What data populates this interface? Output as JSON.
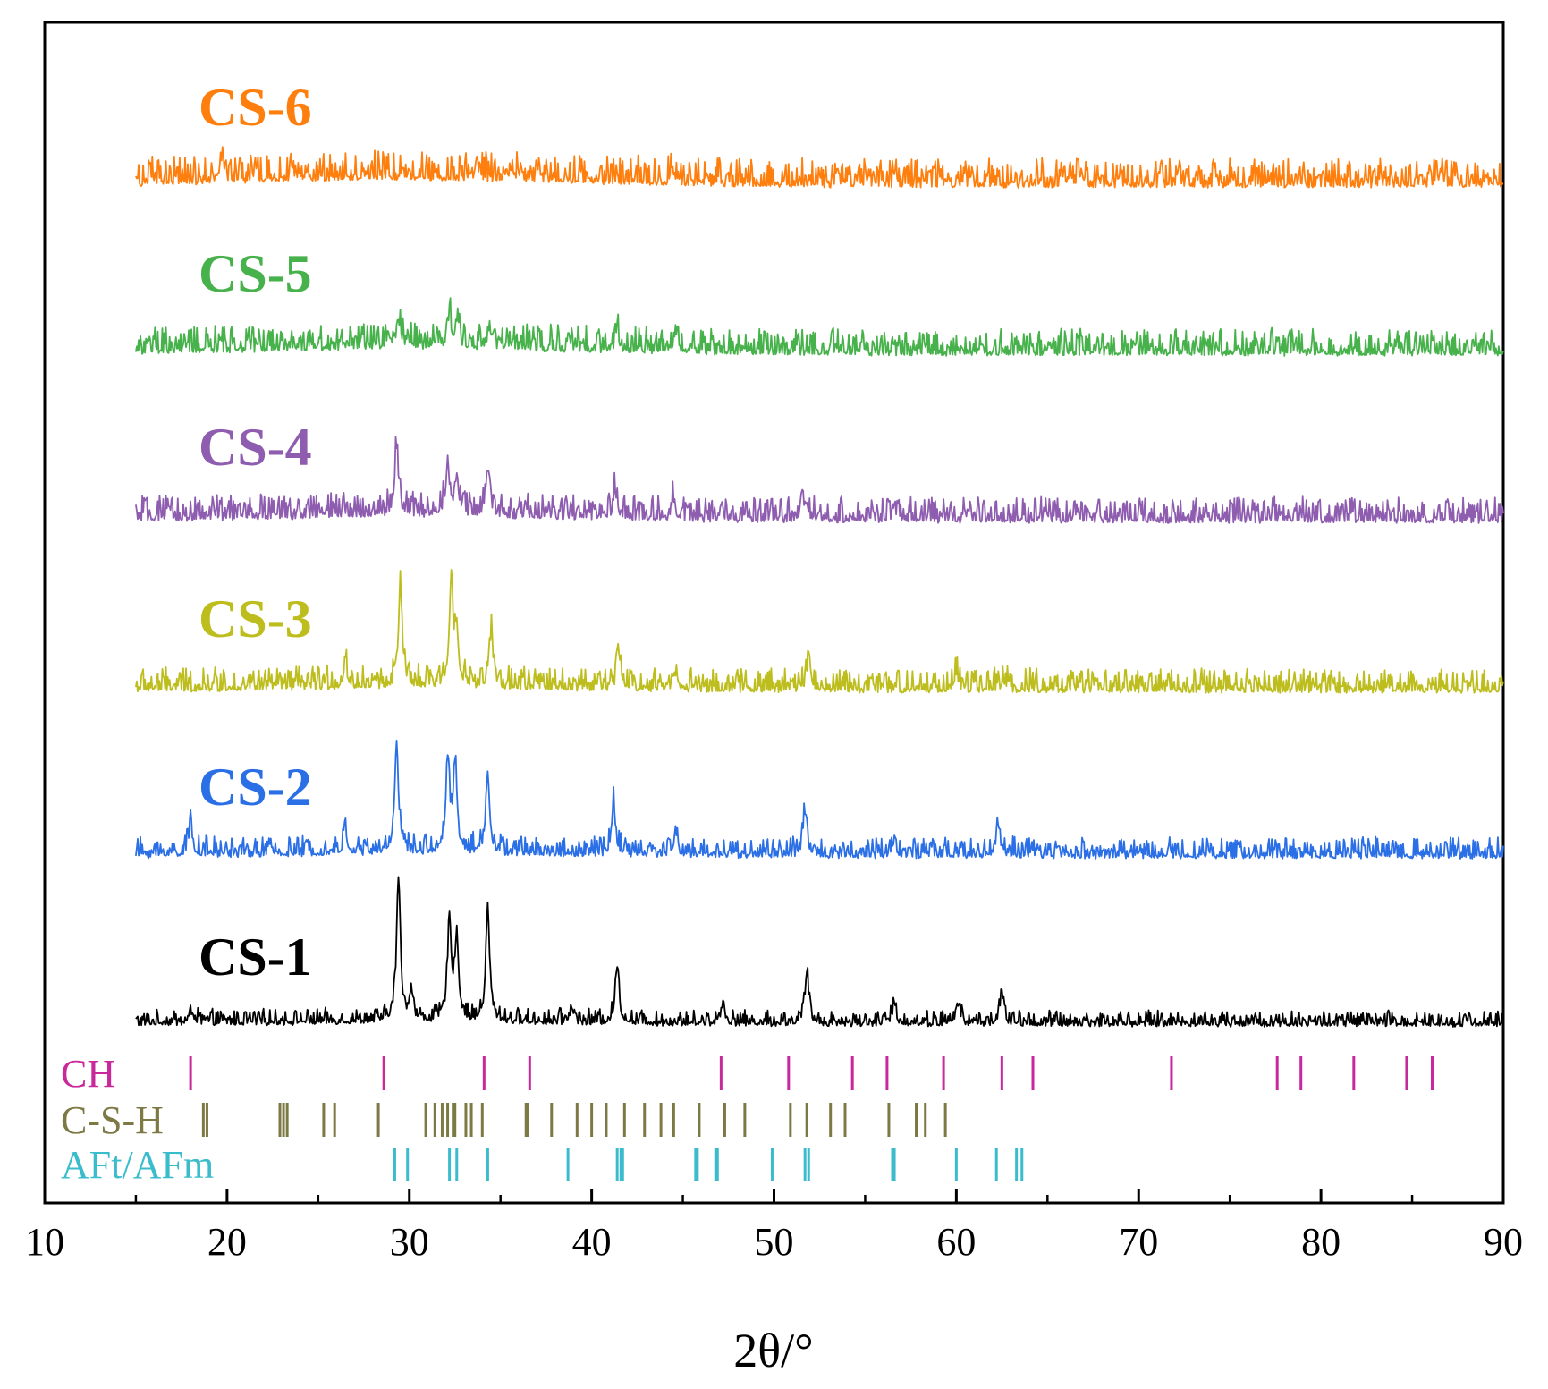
{
  "chart_data": {
    "type": "line",
    "title": "",
    "xlabel": "2θ/°",
    "ylabel": "",
    "xlim": [
      10,
      90
    ],
    "xticks": [
      10,
      20,
      30,
      40,
      50,
      60,
      70,
      80,
      90
    ],
    "x_start": 15,
    "grid": false,
    "series": [
      {
        "name": "CS-1",
        "color": "#000000",
        "noise": 0.45,
        "hump": 0.1,
        "peaks": [
          [
            18.1,
            1.0
          ],
          [
            29.4,
            14.0
          ],
          [
            30.1,
            3.0
          ],
          [
            32.2,
            10.0
          ],
          [
            32.6,
            8.0
          ],
          [
            34.3,
            11.0
          ],
          [
            38.9,
            1.5
          ],
          [
            41.4,
            5.5
          ],
          [
            47.2,
            2.0
          ],
          [
            51.8,
            5.0
          ],
          [
            56.6,
            1.8
          ],
          [
            60.1,
            2.0
          ],
          [
            62.5,
            3.0
          ]
        ]
      },
      {
        "name": "CS-2",
        "color": "#2b6fe6",
        "noise": 0.6,
        "hump": 0.1,
        "peaks": [
          [
            18.0,
            3.0
          ],
          [
            26.5,
            2.0
          ],
          [
            29.3,
            11.0
          ],
          [
            32.1,
            9.0
          ],
          [
            32.5,
            8.5
          ],
          [
            34.3,
            8.0
          ],
          [
            41.2,
            5.0
          ],
          [
            44.6,
            2.0
          ],
          [
            51.7,
            4.0
          ],
          [
            56.6,
            1.5
          ],
          [
            62.3,
            3.0
          ]
        ]
      },
      {
        "name": "CS-3",
        "color": "#bdbd1e",
        "noise": 0.7,
        "hump": 0.15,
        "peaks": [
          [
            26.5,
            2.0
          ],
          [
            29.5,
            9.5
          ],
          [
            32.3,
            10.0
          ],
          [
            32.6,
            5.0
          ],
          [
            34.5,
            5.0
          ],
          [
            41.5,
            3.5
          ],
          [
            44.6,
            1.5
          ],
          [
            51.9,
            3.5
          ],
          [
            60.0,
            1.5
          ],
          [
            62.6,
            1.0
          ]
        ]
      },
      {
        "name": "CS-4",
        "color": "#8e5db0",
        "noise": 0.75,
        "hump": 0.25,
        "peaks": [
          [
            29.3,
            6.5
          ],
          [
            32.1,
            5.0
          ],
          [
            32.6,
            3.5
          ],
          [
            34.3,
            4.5
          ],
          [
            41.3,
            2.5
          ],
          [
            44.5,
            1.8
          ],
          [
            51.7,
            2.0
          ],
          [
            56.6,
            1.0
          ]
        ]
      },
      {
        "name": "CS-5",
        "color": "#47b24b",
        "noise": 0.8,
        "hump": 0.3,
        "peaks": [
          [
            29.4,
            2.5
          ],
          [
            32.2,
            3.0
          ],
          [
            32.6,
            2.0
          ],
          [
            34.4,
            2.0
          ],
          [
            41.4,
            1.5
          ],
          [
            44.6,
            1.5
          ]
        ]
      },
      {
        "name": "CS-6",
        "color": "#ff7f0e",
        "noise": 0.85,
        "hump": 0.35,
        "peaks": [
          [
            19.7,
            2.0
          ],
          [
            35.6,
            1.0
          ],
          [
            44.5,
            1.0
          ]
        ]
      }
    ],
    "reference_phases": [
      {
        "name": "CH",
        "color": "#c8289a",
        "positions": [
          18.0,
          28.6,
          34.1,
          36.6,
          47.1,
          50.8,
          54.3,
          56.2,
          59.3,
          62.5,
          64.2,
          71.8,
          77.6,
          78.9,
          81.8,
          84.7,
          86.1
        ]
      },
      {
        "name": "C-S-H",
        "color": "#7d7945",
        "positions": [
          18.7,
          18.9,
          22.9,
          23.1,
          23.3,
          25.3,
          25.9,
          28.3,
          30.9,
          31.4,
          31.8,
          32.1,
          32.4,
          32.5,
          33.1,
          33.4,
          34.0,
          36.4,
          36.5,
          37.8,
          39.2,
          40.0,
          40.8,
          41.8,
          42.9,
          43.8,
          44.5,
          45.9,
          47.3,
          48.4,
          50.9,
          51.8,
          53.1,
          53.9,
          56.3,
          57.8,
          58.3,
          59.4
        ]
      },
      {
        "name": "AFt/AFm",
        "color": "#3bbccc",
        "positions": [
          29.2,
          29.9,
          32.2,
          32.6,
          34.3,
          38.7,
          41.4,
          41.6,
          41.7,
          45.7,
          45.8,
          46.8,
          46.9,
          49.9,
          51.7,
          51.9,
          56.5,
          56.6,
          60.0,
          62.2,
          63.3,
          63.6
        ]
      }
    ]
  }
}
